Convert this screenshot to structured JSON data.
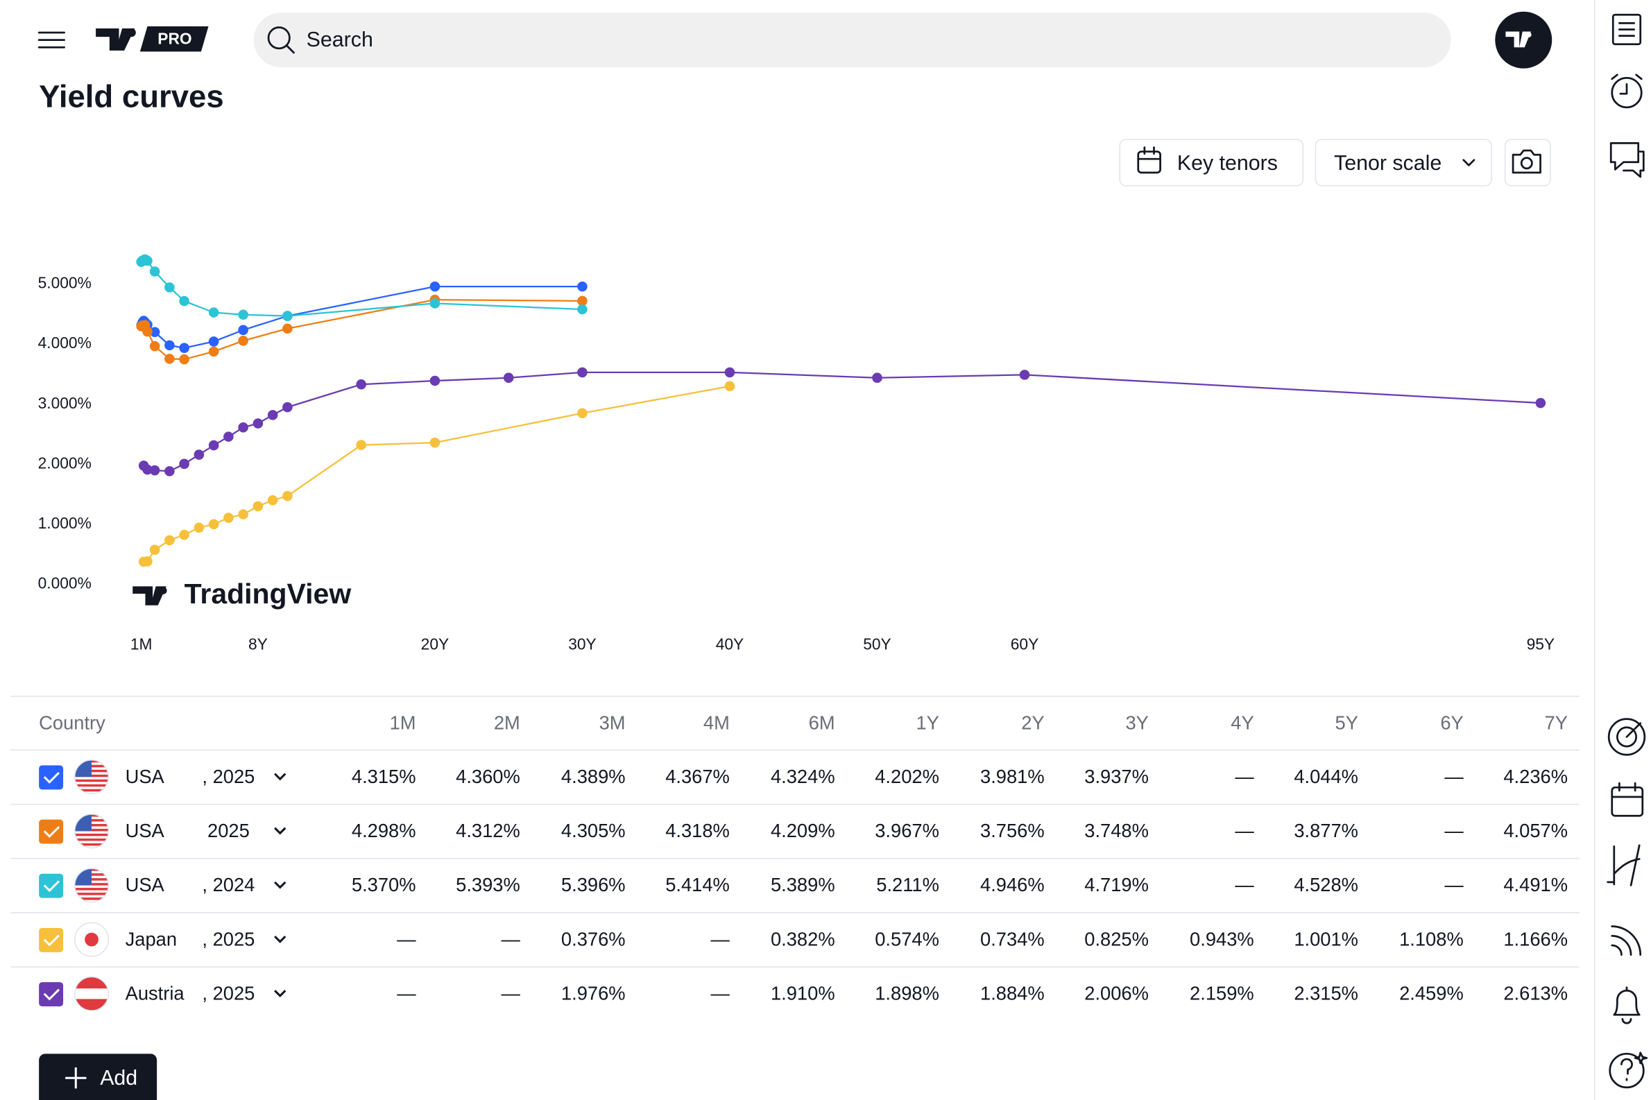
{
  "header": {
    "logo_badge": "PRO",
    "search_placeholder": "Search"
  },
  "page_title": "Yield curves",
  "toolbar": {
    "key_tenors": "Key tenors",
    "tenor_scale": "Tenor scale"
  },
  "chart_data": {
    "type": "line",
    "watermark": "TradingView",
    "xlim": [
      -0.5,
      96.2
    ],
    "ylim": [
      -0.35,
      5.7
    ],
    "xticks": [
      {
        "value": 0.0833,
        "label": "1M"
      },
      {
        "value": 8,
        "label": "8Y"
      },
      {
        "value": 20,
        "label": "20Y"
      },
      {
        "value": 30,
        "label": "30Y"
      },
      {
        "value": 40,
        "label": "40Y"
      },
      {
        "value": 50,
        "label": "50Y"
      },
      {
        "value": 60,
        "label": "60Y"
      },
      {
        "value": 95,
        "label": "95Y"
      }
    ],
    "yticks": [
      {
        "value": 0,
        "label": "0.000%"
      },
      {
        "value": 1,
        "label": "1.000%"
      },
      {
        "value": 2,
        "label": "2.000%"
      },
      {
        "value": 3,
        "label": "3.000%"
      },
      {
        "value": 4,
        "label": "4.000%"
      },
      {
        "value": 5,
        "label": "5.000%"
      }
    ],
    "grid": false,
    "series": [
      {
        "color": "#2962ff",
        "x": [
          0.0833,
          0.1667,
          0.25,
          0.3333,
          0.5,
          1,
          2,
          3,
          5,
          7,
          10,
          20,
          30
        ],
        "values": [
          4.315,
          4.36,
          4.389,
          4.367,
          4.324,
          4.202,
          3.981,
          3.937,
          4.044,
          4.236,
          4.47,
          4.96,
          4.96
        ]
      },
      {
        "color": "#ef7d16",
        "x": [
          0.0833,
          0.1667,
          0.25,
          0.3333,
          0.5,
          1,
          2,
          3,
          5,
          7,
          10,
          20,
          30
        ],
        "values": [
          4.298,
          4.312,
          4.305,
          4.318,
          4.209,
          3.967,
          3.756,
          3.748,
          3.877,
          4.057,
          4.26,
          4.74,
          4.72
        ]
      },
      {
        "color": "#2cc3d6",
        "x": [
          0.0833,
          0.1667,
          0.25,
          0.3333,
          0.5,
          1,
          2,
          3,
          5,
          7,
          10,
          20,
          30
        ],
        "values": [
          5.37,
          5.393,
          5.396,
          5.414,
          5.389,
          5.211,
          4.946,
          4.719,
          4.528,
          4.491,
          4.47,
          4.68,
          4.58
        ]
      },
      {
        "color": "#f6c03a",
        "x": [
          0.25,
          0.5,
          1,
          2,
          3,
          4,
          5,
          6,
          7,
          8,
          9,
          10,
          15,
          20,
          30,
          40
        ],
        "values": [
          0.376,
          0.382,
          0.574,
          0.734,
          0.825,
          0.943,
          1.001,
          1.108,
          1.166,
          1.3,
          1.4,
          1.47,
          2.32,
          2.36,
          2.85,
          3.3
        ]
      },
      {
        "color": "#6a3bb2",
        "x": [
          0.25,
          0.5,
          1,
          2,
          3,
          4,
          5,
          6,
          7,
          8,
          9,
          10,
          15,
          20,
          25,
          30,
          40,
          50,
          60,
          95
        ],
        "values": [
          1.976,
          1.91,
          1.898,
          1.884,
          2.006,
          2.159,
          2.315,
          2.459,
          2.613,
          2.68,
          2.82,
          2.95,
          3.33,
          3.39,
          3.44,
          3.53,
          3.53,
          3.44,
          3.49,
          3.02
        ]
      }
    ]
  },
  "table": {
    "columns": [
      "Country",
      "1M",
      "2M",
      "3M",
      "4M",
      "6M",
      "1Y",
      "2Y",
      "3Y",
      "4Y",
      "5Y",
      "6Y",
      "7Y"
    ],
    "rows": [
      {
        "country": "USA",
        "date": ", 2025",
        "cells": [
          "4.315%",
          "4.360%",
          "4.389%",
          "4.367%",
          "4.324%",
          "4.202%",
          "3.981%",
          "3.937%",
          "—",
          "4.044%",
          "—",
          "4.236%"
        ]
      },
      {
        "country": "USA",
        "date": "2025",
        "cells": [
          "4.298%",
          "4.312%",
          "4.305%",
          "4.318%",
          "4.209%",
          "3.967%",
          "3.756%",
          "3.748%",
          "—",
          "3.877%",
          "—",
          "4.057%"
        ]
      },
      {
        "country": "USA",
        "date": ", 2024",
        "cells": [
          "5.370%",
          "5.393%",
          "5.396%",
          "5.414%",
          "5.389%",
          "5.211%",
          "4.946%",
          "4.719%",
          "—",
          "4.528%",
          "—",
          "4.491%"
        ]
      },
      {
        "country": "Japan",
        "date": ", 2025",
        "cells": [
          "—",
          "—",
          "0.376%",
          "—",
          "0.382%",
          "0.574%",
          "0.734%",
          "0.825%",
          "0.943%",
          "1.001%",
          "1.108%",
          "1.166%"
        ]
      },
      {
        "country": "Austria",
        "date": ", 2025",
        "cells": [
          "—",
          "—",
          "1.976%",
          "—",
          "1.910%",
          "1.898%",
          "1.884%",
          "2.006%",
          "2.159%",
          "2.315%",
          "2.459%",
          "2.613%"
        ]
      }
    ]
  },
  "add_button": "Add"
}
